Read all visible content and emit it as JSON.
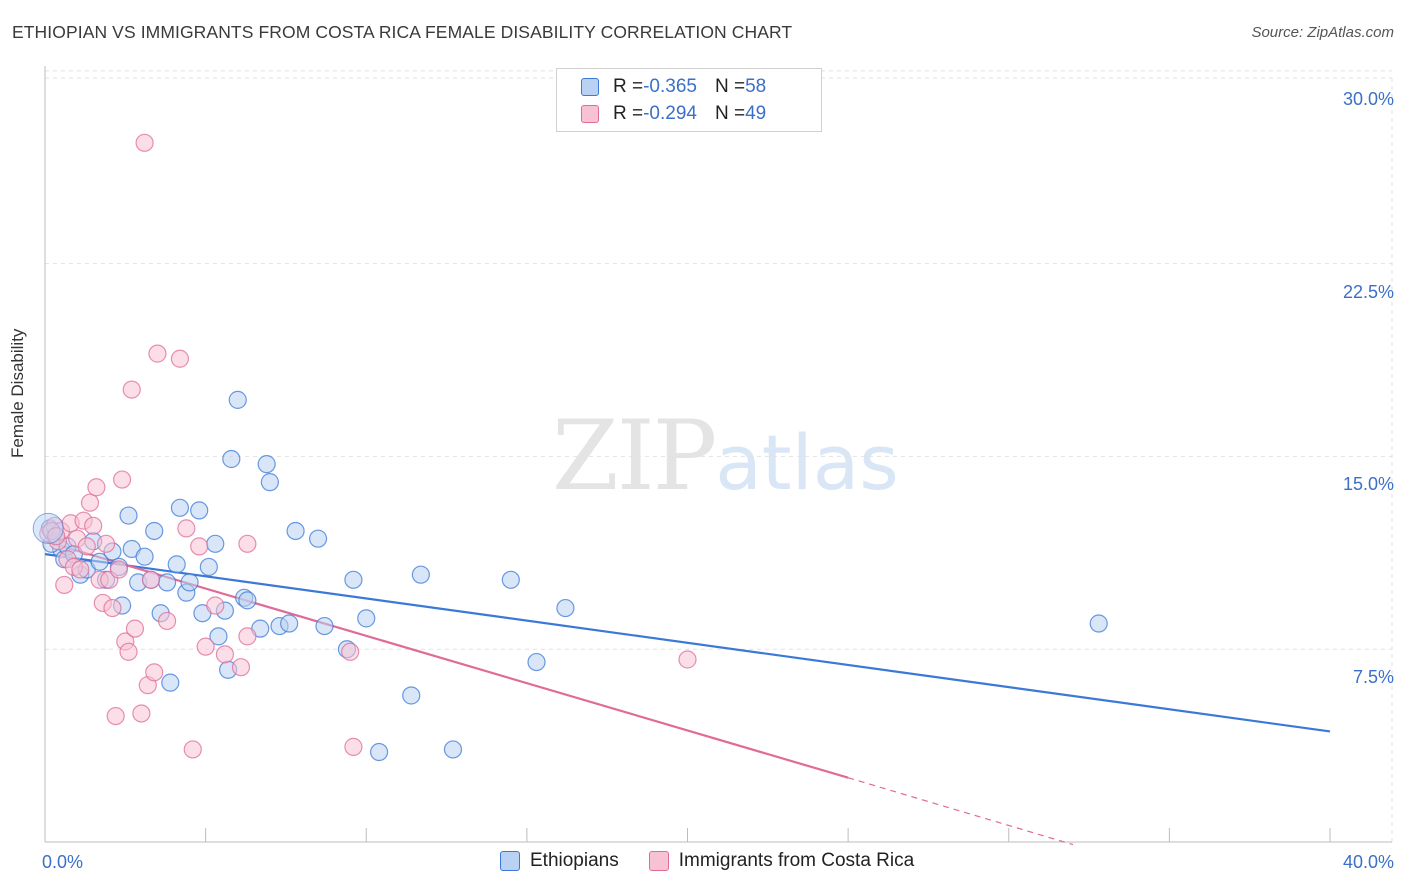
{
  "title": "ETHIOPIAN VS IMMIGRANTS FROM COSTA RICA FEMALE DISABILITY CORRELATION CHART",
  "source": "Source: ZipAtlas.com",
  "watermark": {
    "zip": "ZIP",
    "atlas": "atlas"
  },
  "colors": {
    "blue": "#3b78d8",
    "blue_fill": "#b9d2f3",
    "pink": "#e06b97",
    "pink_fill": "#f7c3d4",
    "tick_text": "#3b6fc9"
  },
  "legend": {
    "series1": {
      "r_label": "R = ",
      "r_value": "-0.365",
      "n_label": "N = ",
      "n_value": "58"
    },
    "series2": {
      "r_label": "R = ",
      "r_value": "-0.294",
      "n_label": "N = ",
      "n_value": "49"
    }
  },
  "chart_data": {
    "type": "scatter",
    "title": "ETHIOPIAN VS IMMIGRANTS FROM COSTA RICA FEMALE DISABILITY CORRELATION CHART",
    "xlabel": "",
    "ylabel": "Female Disability",
    "xlim": [
      0,
      40
    ],
    "ylim": [
      0,
      30.5
    ],
    "x_tick_labels": [
      "0.0%",
      "40.0%"
    ],
    "y_ticks": [
      7.5,
      15.0,
      22.5,
      30.0
    ],
    "y_tick_labels": [
      "7.5%",
      "15.0%",
      "22.5%",
      "30.0%"
    ],
    "grid": true,
    "legend_position": "top-center",
    "series": [
      {
        "name": "Ethiopians",
        "color": "#3b78d8",
        "trend": {
          "x0": 0,
          "y0": 11.2,
          "x1": 40,
          "y1": 4.3,
          "dashed_from": null
        },
        "points": [
          [
            0.15,
            12.2
          ],
          [
            0.3,
            11.9
          ],
          [
            0.5,
            11.4
          ],
          [
            0.6,
            11.0
          ],
          [
            0.7,
            11.5
          ],
          [
            0.9,
            11.2
          ],
          [
            1.1,
            10.4
          ],
          [
            1.3,
            10.6
          ],
          [
            1.5,
            11.7
          ],
          [
            1.7,
            10.9
          ],
          [
            1.9,
            10.2
          ],
          [
            2.1,
            11.3
          ],
          [
            2.3,
            10.7
          ],
          [
            2.4,
            9.2
          ],
          [
            2.6,
            12.7
          ],
          [
            2.7,
            11.4
          ],
          [
            2.9,
            10.1
          ],
          [
            3.1,
            11.1
          ],
          [
            3.3,
            10.2
          ],
          [
            3.4,
            12.1
          ],
          [
            3.6,
            8.9
          ],
          [
            3.8,
            10.1
          ],
          [
            3.9,
            6.2
          ],
          [
            4.1,
            10.8
          ],
          [
            4.2,
            13.0
          ],
          [
            4.4,
            9.7
          ],
          [
            4.5,
            10.1
          ],
          [
            4.8,
            12.9
          ],
          [
            4.9,
            8.9
          ],
          [
            5.1,
            10.7
          ],
          [
            5.3,
            11.6
          ],
          [
            5.4,
            8.0
          ],
          [
            5.6,
            9.0
          ],
          [
            5.7,
            6.7
          ],
          [
            5.8,
            14.9
          ],
          [
            6.0,
            17.2
          ],
          [
            6.2,
            9.5
          ],
          [
            6.3,
            9.4
          ],
          [
            6.7,
            8.3
          ],
          [
            6.9,
            14.7
          ],
          [
            7.0,
            14.0
          ],
          [
            7.3,
            8.4
          ],
          [
            7.6,
            8.5
          ],
          [
            7.8,
            12.1
          ],
          [
            8.5,
            11.8
          ],
          [
            8.7,
            8.4
          ],
          [
            9.4,
            7.5
          ],
          [
            9.6,
            10.2
          ],
          [
            10.0,
            8.7
          ],
          [
            10.4,
            3.5
          ],
          [
            11.4,
            5.7
          ],
          [
            11.7,
            10.4
          ],
          [
            12.7,
            3.6
          ],
          [
            14.5,
            10.2
          ],
          [
            15.3,
            7.0
          ],
          [
            16.2,
            9.1
          ],
          [
            32.8,
            8.5
          ],
          [
            0.2,
            11.6
          ]
        ]
      },
      {
        "name": "Immigrants from Costa Rica",
        "color": "#e06b97",
        "trend": {
          "x0": 0,
          "y0": 11.7,
          "x1": 25,
          "y1": 2.5,
          "dashed_from": 25,
          "dashed_to_x": 32,
          "dashed_to_y": -0.1
        },
        "points": [
          [
            0.1,
            12.0
          ],
          [
            0.3,
            12.3
          ],
          [
            0.4,
            11.7
          ],
          [
            0.5,
            12.1
          ],
          [
            0.6,
            10.0
          ],
          [
            0.7,
            11.0
          ],
          [
            0.8,
            12.4
          ],
          [
            0.9,
            10.7
          ],
          [
            1.0,
            11.8
          ],
          [
            1.1,
            10.6
          ],
          [
            1.2,
            12.5
          ],
          [
            1.3,
            11.5
          ],
          [
            1.4,
            13.2
          ],
          [
            1.5,
            12.3
          ],
          [
            1.6,
            13.8
          ],
          [
            1.7,
            10.2
          ],
          [
            1.8,
            9.3
          ],
          [
            1.9,
            11.6
          ],
          [
            2.0,
            10.2
          ],
          [
            2.1,
            9.1
          ],
          [
            2.2,
            4.9
          ],
          [
            2.3,
            10.6
          ],
          [
            2.4,
            14.1
          ],
          [
            2.5,
            7.8
          ],
          [
            2.6,
            7.4
          ],
          [
            2.7,
            17.6
          ],
          [
            2.8,
            8.3
          ],
          [
            3.0,
            5.0
          ],
          [
            3.1,
            27.2
          ],
          [
            3.2,
            6.1
          ],
          [
            3.3,
            10.2
          ],
          [
            3.4,
            6.6
          ],
          [
            3.5,
            19.0
          ],
          [
            3.8,
            8.6
          ],
          [
            4.2,
            18.8
          ],
          [
            4.4,
            12.2
          ],
          [
            4.6,
            3.6
          ],
          [
            4.8,
            11.5
          ],
          [
            5.0,
            7.6
          ],
          [
            5.3,
            9.2
          ],
          [
            5.6,
            7.3
          ],
          [
            6.1,
            6.8
          ],
          [
            6.3,
            8.0
          ],
          [
            6.3,
            11.6
          ],
          [
            9.5,
            7.4
          ],
          [
            9.6,
            3.7
          ],
          [
            20.0,
            7.1
          ],
          [
            0.2,
            12.1
          ],
          [
            0.35,
            11.9
          ]
        ]
      }
    ]
  }
}
